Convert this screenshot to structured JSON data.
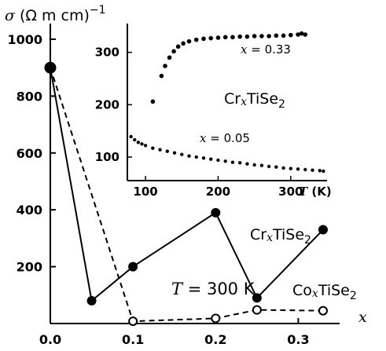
{
  "chart_data": [
    {
      "type": "line",
      "ylabel": {
        "sym": "σ",
        "unit": " (Ω m cm)",
        "exp": "−1"
      },
      "xlabel": "x",
      "xlim": [
        0,
        0.35
      ],
      "ylim": [
        0,
        1000
      ],
      "x_ticks": [
        0.0,
        0.1,
        0.2,
        0.3
      ],
      "x_tick_labels": [
        "0.0",
        "0.1",
        "0.2",
        "0.3"
      ],
      "y_ticks": [
        200,
        400,
        600,
        800,
        1000
      ],
      "y_tick_labels": [
        "200",
        "400",
        "600",
        "800",
        "1000"
      ],
      "annotation": {
        "sym": "T",
        "rest": " = 300 K"
      },
      "series": [
        {
          "name": "CrxTiSe2",
          "label_main": "Cr",
          "label_sub": "x",
          "label_end": "TiSe",
          "label_sub2": "2",
          "style": "solid",
          "marker": "filled",
          "points": [
            [
              0.0,
              900
            ],
            [
              0.05,
              80
            ],
            [
              0.1,
              200
            ],
            [
              0.2,
              390
            ],
            [
              0.25,
              90
            ],
            [
              0.33,
              330
            ]
          ]
        },
        {
          "name": "CoxTiSe2",
          "label_main": "Co",
          "label_sub": "x",
          "label_end": "TiSe",
          "label_sub2": "2",
          "style": "dashed",
          "marker": "open",
          "points": [
            [
              0.0,
              900
            ],
            [
              0.1,
              8
            ],
            [
              0.2,
              18
            ],
            [
              0.25,
              48
            ],
            [
              0.33,
              45
            ]
          ]
        }
      ]
    },
    {
      "type": "scatter",
      "title": {
        "main": "Cr",
        "sub": "x",
        "end": "TiSe",
        "sub2": "2"
      },
      "xlabel": {
        "sym": "T",
        "unit": " (K)"
      },
      "xlim": [
        75,
        350
      ],
      "ylim": [
        55,
        355
      ],
      "x_ticks": [
        100,
        200,
        300
      ],
      "x_tick_labels": [
        "100",
        "200",
        "300"
      ],
      "y_ticks": [
        100,
        200,
        300
      ],
      "y_tick_labels": [
        "100",
        "200",
        "300"
      ],
      "series": [
        {
          "name": "x = 0.33",
          "label_sym": "x",
          "label_rest": " = 0.33",
          "points": [
            [
              110,
              206
            ],
            [
              122,
              255
            ],
            [
              127,
              274
            ],
            [
              133,
              290
            ],
            [
              139,
              302
            ],
            [
              145,
              311
            ],
            [
              152,
              317
            ],
            [
              160,
              321
            ],
            [
              170,
              324
            ],
            [
              180,
              326
            ],
            [
              190,
              327
            ],
            [
              200,
              328
            ],
            [
              210,
              329
            ],
            [
              220,
              329
            ],
            [
              230,
              330
            ],
            [
              240,
              330
            ],
            [
              250,
              331
            ],
            [
              260,
              331
            ],
            [
              270,
              331
            ],
            [
              280,
              332
            ],
            [
              290,
              332
            ],
            [
              300,
              333
            ],
            [
              310,
              334
            ],
            [
              315,
              336
            ],
            [
              320,
              334
            ]
          ]
        },
        {
          "name": "x = 0.05",
          "label_sym": "x",
          "label_rest": " = 0.05",
          "points": [
            [
              80,
              139
            ],
            [
              85,
              133
            ],
            [
              90,
              128
            ],
            [
              95,
              125
            ],
            [
              100,
              122
            ],
            [
              110,
              117
            ],
            [
              120,
              114
            ],
            [
              130,
              111
            ],
            [
              140,
              108
            ],
            [
              150,
              105
            ],
            [
              160,
              102
            ],
            [
              170,
              100
            ],
            [
              180,
              98
            ],
            [
              190,
              96
            ],
            [
              200,
              94
            ],
            [
              210,
              92
            ],
            [
              220,
              90
            ],
            [
              230,
              89
            ],
            [
              240,
              87
            ],
            [
              250,
              85
            ],
            [
              260,
              84
            ],
            [
              270,
              82
            ],
            [
              280,
              81
            ],
            [
              290,
              79
            ],
            [
              300,
              78
            ],
            [
              310,
              77
            ],
            [
              320,
              76
            ],
            [
              330,
              75
            ],
            [
              340,
              74
            ],
            [
              345,
              73
            ]
          ]
        }
      ]
    }
  ]
}
